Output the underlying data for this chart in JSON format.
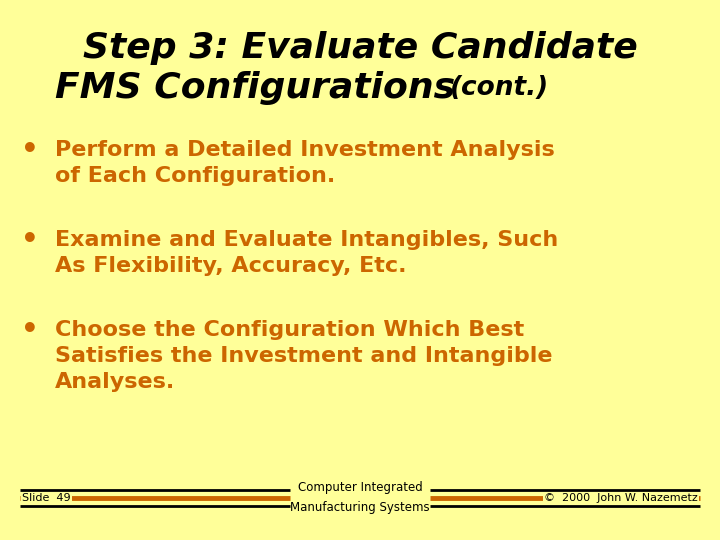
{
  "bg_color": "#FFFF99",
  "title_line1": "Step 3: Evaluate Candidate",
  "title_line2": "FMS Configurations",
  "title_cont": "(cont.)",
  "title_color": "#000000",
  "bullet_color": "#CC6600",
  "bullet_points": [
    [
      "Perform a Detailed Investment Analysis",
      "of Each Configuration."
    ],
    [
      "Examine and Evaluate Intangibles, Such",
      "As Flexibility, Accuracy, Etc."
    ],
    [
      "Choose the Configuration Which Best",
      "Satisfies the Investment and Intangible",
      "Analyses."
    ]
  ],
  "footer_left": "Slide  49",
  "footer_center_line1": "Computer Integrated",
  "footer_center_line2": "Manufacturing Systems",
  "footer_right": "©  2000  John W. Nazemetz",
  "footer_text_color": "#000000",
  "line_color_black": "#000000",
  "line_color_orange": "#CC6600"
}
